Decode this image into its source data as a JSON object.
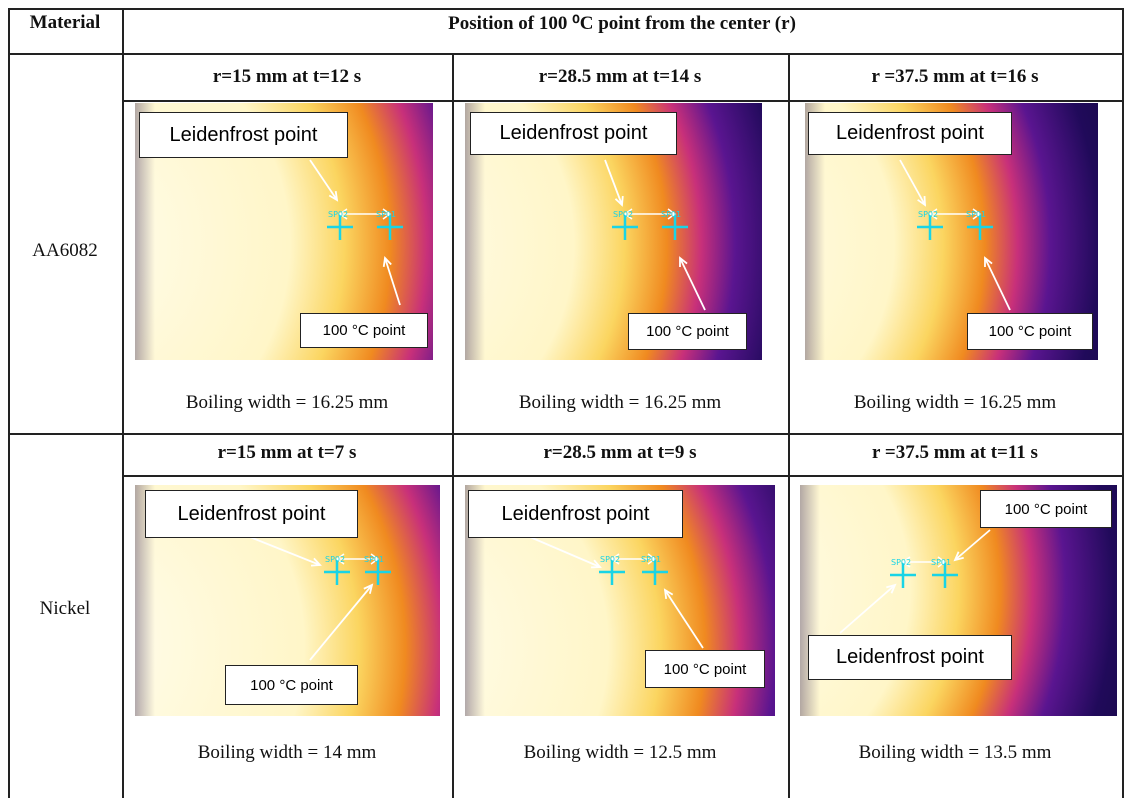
{
  "header": {
    "material": "Material",
    "position": "Position of 100 ⁰C point from the center (r)"
  },
  "rows": [
    {
      "material": "AA6082",
      "cells": [
        {
          "heading": "r=15 mm at t=12 s",
          "leidenfrost": "Leidenfrost point",
          "point": "100 °C point",
          "spots": [
            "SP02",
            "SP01"
          ],
          "caption": "Boiling width = 16.25 mm"
        },
        {
          "heading": "r=28.5 mm at t=14 s",
          "leidenfrost": "Leidenfrost point",
          "point": "100 °C point",
          "spots": [
            "SP02",
            "SP01"
          ],
          "caption": "Boiling width = 16.25 mm"
        },
        {
          "heading": "r =37.5 mm at t=16 s",
          "leidenfrost": "Leidenfrost point",
          "point": "100 °C point",
          "spots": [
            "SP02",
            "SP01"
          ],
          "caption": "Boiling width = 16.25 mm"
        }
      ]
    },
    {
      "material": "Nickel",
      "cells": [
        {
          "heading": "r=15 mm at t=7 s",
          "leidenfrost": "Leidenfrost point",
          "point": "100 °C point",
          "spots": [
            "SP02",
            "SP01"
          ],
          "caption": "Boiling width = 14 mm"
        },
        {
          "heading": "r=28.5 mm at t=9 s",
          "leidenfrost": "Leidenfrost point",
          "point": "100 °C point",
          "spots": [
            "SP02",
            "SP01"
          ],
          "caption": "Boiling width = 12.5 mm"
        },
        {
          "heading": "r =37.5 mm at t=11 s",
          "leidenfrost": "Leidenfrost point",
          "point": "100 °C point",
          "spots": [
            "SP02",
            "SP01"
          ],
          "caption": "Boiling width = 13.5 mm"
        }
      ]
    }
  ]
}
